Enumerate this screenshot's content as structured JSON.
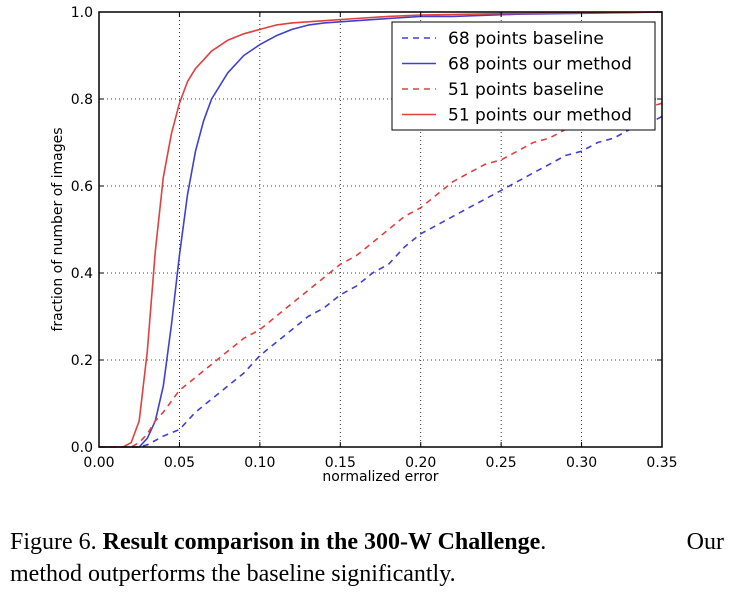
{
  "chart_data": {
    "type": "line",
    "title": "",
    "xlabel": "normalized error",
    "ylabel": "fraction of number of images",
    "xlim": [
      0.0,
      0.35
    ],
    "ylim": [
      0.0,
      1.0
    ],
    "xticks": [
      "0.00",
      "0.05",
      "0.10",
      "0.15",
      "0.20",
      "0.25",
      "0.30",
      "0.35"
    ],
    "yticks": [
      "0.0",
      "0.2",
      "0.4",
      "0.6",
      "0.8",
      "1.0"
    ],
    "grid": true,
    "legend_position": "top-right",
    "series": [
      {
        "name": "68 points baseline",
        "color": "#4040d0",
        "dash": true,
        "x": [
          0.0,
          0.025,
          0.03,
          0.035,
          0.04,
          0.05,
          0.06,
          0.07,
          0.08,
          0.09,
          0.1,
          0.11,
          0.12,
          0.13,
          0.14,
          0.15,
          0.16,
          0.17,
          0.18,
          0.19,
          0.2,
          0.21,
          0.22,
          0.23,
          0.24,
          0.25,
          0.26,
          0.27,
          0.28,
          0.29,
          0.3,
          0.31,
          0.32,
          0.33,
          0.34,
          0.35
        ],
        "y": [
          0.0,
          0.0,
          0.005,
          0.015,
          0.025,
          0.04,
          0.08,
          0.11,
          0.14,
          0.17,
          0.21,
          0.24,
          0.27,
          0.3,
          0.32,
          0.35,
          0.37,
          0.4,
          0.42,
          0.46,
          0.49,
          0.51,
          0.53,
          0.55,
          0.57,
          0.59,
          0.61,
          0.63,
          0.65,
          0.67,
          0.68,
          0.7,
          0.71,
          0.73,
          0.74,
          0.76
        ]
      },
      {
        "name": "68 points our method",
        "color": "#4040d0",
        "dash": false,
        "x": [
          0.0,
          0.025,
          0.03,
          0.035,
          0.04,
          0.045,
          0.05,
          0.055,
          0.06,
          0.065,
          0.07,
          0.08,
          0.09,
          0.1,
          0.11,
          0.12,
          0.13,
          0.14,
          0.16,
          0.18,
          0.2,
          0.22,
          0.26,
          0.3,
          0.35
        ],
        "y": [
          0.0,
          0.0,
          0.02,
          0.06,
          0.14,
          0.28,
          0.44,
          0.58,
          0.68,
          0.75,
          0.8,
          0.86,
          0.9,
          0.925,
          0.945,
          0.96,
          0.97,
          0.975,
          0.98,
          0.985,
          0.99,
          0.99,
          0.995,
          0.997,
          1.0
        ]
      },
      {
        "name": "51 points baseline",
        "color": "#e04040",
        "dash": true,
        "x": [
          0.0,
          0.02,
          0.025,
          0.03,
          0.035,
          0.04,
          0.05,
          0.06,
          0.07,
          0.08,
          0.09,
          0.1,
          0.11,
          0.12,
          0.13,
          0.14,
          0.15,
          0.16,
          0.17,
          0.18,
          0.19,
          0.2,
          0.21,
          0.22,
          0.23,
          0.24,
          0.25,
          0.26,
          0.27,
          0.28,
          0.29,
          0.3,
          0.31,
          0.32,
          0.33,
          0.34,
          0.35
        ],
        "y": [
          0.0,
          0.0,
          0.01,
          0.03,
          0.06,
          0.08,
          0.13,
          0.16,
          0.19,
          0.22,
          0.25,
          0.27,
          0.3,
          0.33,
          0.36,
          0.39,
          0.42,
          0.44,
          0.47,
          0.5,
          0.53,
          0.55,
          0.58,
          0.61,
          0.63,
          0.65,
          0.66,
          0.68,
          0.7,
          0.71,
          0.73,
          0.74,
          0.75,
          0.76,
          0.77,
          0.78,
          0.79
        ]
      },
      {
        "name": "51 points our method",
        "color": "#e04040",
        "dash": false,
        "x": [
          0.0,
          0.015,
          0.02,
          0.025,
          0.03,
          0.035,
          0.04,
          0.045,
          0.05,
          0.055,
          0.06,
          0.07,
          0.08,
          0.09,
          0.1,
          0.11,
          0.12,
          0.14,
          0.16,
          0.18,
          0.2,
          0.25,
          0.3,
          0.35
        ],
        "y": [
          0.0,
          0.0,
          0.01,
          0.06,
          0.22,
          0.45,
          0.62,
          0.72,
          0.79,
          0.84,
          0.87,
          0.91,
          0.935,
          0.95,
          0.96,
          0.97,
          0.975,
          0.98,
          0.985,
          0.99,
          0.993,
          0.996,
          0.998,
          1.0
        ]
      }
    ]
  },
  "caption": {
    "line1": {
      "prefix": "Figure 6.",
      "bold": "Result comparison in the 300-W Challenge",
      "suffix": ".",
      "last_word": "Our"
    },
    "line2": "method outperforms the baseline significantly."
  }
}
